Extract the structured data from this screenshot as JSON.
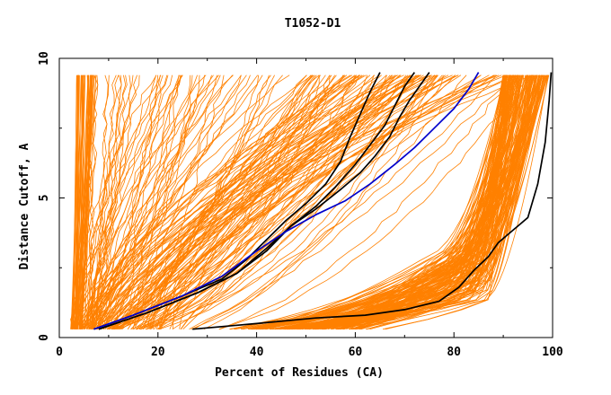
{
  "chart_data": {
    "type": "line",
    "title": "T1052-D1",
    "xlabel": "Percent of Residues (CA)",
    "ylabel": "Distance Cutoff, A",
    "xlim": [
      0,
      100
    ],
    "ylim": [
      0,
      10
    ],
    "x_ticks": [
      "0",
      "20",
      "40",
      "60",
      "80",
      "100"
    ],
    "x_tick_values": [
      0,
      20,
      40,
      60,
      80,
      100
    ],
    "y_ticks": [
      "0",
      "5",
      "10"
    ],
    "y_tick_values": [
      0,
      5,
      10
    ],
    "grid": false,
    "legend": "none",
    "colors": {
      "background_models": "#ff8000",
      "highlight_black": "#000000",
      "highlight_blue": "#0000cc"
    },
    "highlighted_series": [
      {
        "color": "#000000",
        "x": [
          7,
          15,
          25,
          33,
          38,
          42,
          46,
          50,
          54,
          57,
          59,
          61,
          63,
          65
        ],
        "y": [
          0.3,
          0.8,
          1.5,
          2.1,
          2.8,
          3.5,
          4.2,
          4.8,
          5.5,
          6.3,
          7.2,
          8.0,
          8.8,
          9.5
        ]
      },
      {
        "color": "#000000",
        "x": [
          8,
          18,
          28,
          36,
          42,
          47,
          52,
          56,
          60,
          63,
          66,
          68,
          70,
          72
        ],
        "y": [
          0.3,
          0.9,
          1.6,
          2.3,
          3.2,
          4.0,
          4.7,
          5.4,
          6.2,
          6.9,
          7.6,
          8.3,
          9.0,
          9.5
        ]
      },
      {
        "color": "#000000",
        "x": [
          8,
          18,
          28,
          36,
          42,
          47,
          52,
          57,
          61,
          64,
          67,
          69,
          71,
          73,
          75
        ],
        "y": [
          0.3,
          0.9,
          1.6,
          2.3,
          3.1,
          4.0,
          4.6,
          5.3,
          5.9,
          6.5,
          7.2,
          7.9,
          8.5,
          9.0,
          9.5
        ]
      },
      {
        "color": "#0000cc",
        "x": [
          7,
          15,
          25,
          33,
          40,
          46,
          52,
          58,
          63,
          68,
          72,
          76,
          80,
          83,
          85
        ],
        "y": [
          0.3,
          0.8,
          1.5,
          2.2,
          3.1,
          3.8,
          4.4,
          4.9,
          5.5,
          6.2,
          6.8,
          7.5,
          8.2,
          8.9,
          9.5
        ]
      },
      {
        "color": "#000000",
        "x": [
          27,
          40,
          52,
          62,
          70,
          77,
          81,
          84,
          87,
          89,
          91,
          93,
          95,
          97,
          98.5,
          99.3,
          99.7
        ],
        "y": [
          0.3,
          0.5,
          0.7,
          0.8,
          1.0,
          1.3,
          1.8,
          2.4,
          2.9,
          3.4,
          3.7,
          4.0,
          4.3,
          5.5,
          7.0,
          8.5,
          9.5
        ]
      }
    ]
  }
}
